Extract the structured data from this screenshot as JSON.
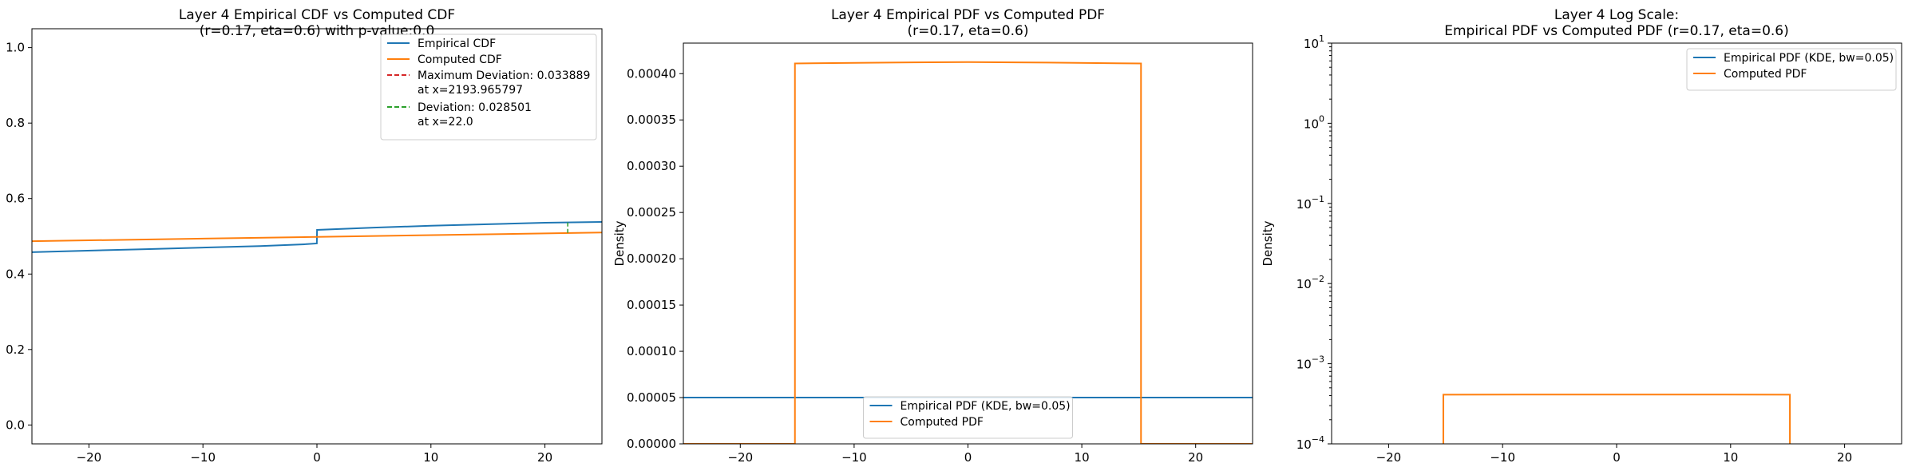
{
  "chart_data": [
    {
      "type": "line",
      "title_line1": "Layer 4 Empirical CDF vs Computed CDF",
      "title_line2": "(r=0.17, eta=0.6) with p-value:0.0",
      "xlabel": "",
      "ylabel": "",
      "xlim": [
        -25,
        25
      ],
      "ylim": [
        -0.05,
        1.05
      ],
      "xticks": [
        -20,
        -10,
        0,
        10,
        20
      ],
      "xtick_labels": [
        "−20",
        "−10",
        "0",
        "10",
        "20"
      ],
      "yticks": [
        0.0,
        0.2,
        0.4,
        0.6,
        0.8,
        1.0
      ],
      "ytick_labels": [
        "0.0",
        "0.2",
        "0.4",
        "0.6",
        "0.8",
        "1.0"
      ],
      "legend_position": "upper right",
      "legend": [
        {
          "label": "Empirical CDF",
          "color": "#1f77b4",
          "style": "solid"
        },
        {
          "label": "Computed CDF",
          "color": "#ff7f0e",
          "style": "solid"
        },
        {
          "label": "Maximum Deviation: 0.033889",
          "label2": "at x=2193.965797",
          "color": "#d62728",
          "style": "dashed"
        },
        {
          "label": "Deviation: 0.028501",
          "label2": "at x=22.0",
          "color": "#2ca02c",
          "style": "dashed"
        }
      ],
      "series": [
        {
          "name": "Empirical CDF",
          "color": "#1f77b4",
          "x": [
            -25,
            -15,
            -5,
            -1,
            -0.01,
            0.01,
            5,
            10,
            15,
            20,
            25
          ],
          "y": [
            0.458,
            0.466,
            0.474,
            0.479,
            0.481,
            0.517,
            0.523,
            0.528,
            0.532,
            0.536,
            0.538
          ]
        },
        {
          "name": "Computed CDF",
          "color": "#ff7f0e",
          "x": [
            -25,
            25
          ],
          "y": [
            0.487,
            0.51
          ]
        }
      ],
      "deviation_marker": {
        "x": 22.0,
        "y_from": 0.509,
        "y_to": 0.537,
        "color": "#2ca02c"
      }
    },
    {
      "type": "line",
      "title_line1": "Layer 4 Empirical PDF vs Computed PDF",
      "title_line2": "(r=0.17, eta=0.6)",
      "xlabel": "",
      "ylabel": "Density",
      "xlim": [
        -25,
        25
      ],
      "ylim": [
        0,
        0.000433
      ],
      "xticks": [
        -20,
        -10,
        0,
        10,
        20
      ],
      "xtick_labels": [
        "−20",
        "−10",
        "0",
        "10",
        "20"
      ],
      "yticks": [
        0,
        5e-05,
        0.0001,
        0.00015,
        0.0002,
        0.00025,
        0.0003,
        0.00035,
        0.0004
      ],
      "ytick_labels": [
        "0.00000",
        "0.00005",
        "0.00010",
        "0.00015",
        "0.00020",
        "0.00025",
        "0.00030",
        "0.00035",
        "0.00040"
      ],
      "legend_position": "lower center",
      "legend": [
        {
          "label": "Empirical PDF (KDE, bw=0.05)",
          "color": "#1f77b4",
          "style": "solid"
        },
        {
          "label": "Computed PDF",
          "color": "#ff7f0e",
          "style": "solid"
        }
      ],
      "series": [
        {
          "name": "Empirical PDF (KDE, bw=0.05)",
          "color": "#1f77b4",
          "x": [
            -25,
            25
          ],
          "y": [
            5e-05,
            5e-05
          ]
        },
        {
          "name": "Computed PDF",
          "color": "#ff7f0e",
          "x": [
            -25,
            -15.2,
            -15.2,
            -7,
            0,
            7,
            15.2,
            15.2,
            25
          ],
          "y": [
            0,
            0,
            0.000411,
            0.000412,
            0.0004125,
            0.000412,
            0.000411,
            0,
            0
          ]
        }
      ]
    },
    {
      "type": "line",
      "title_line1": "Layer 4 Log Scale:",
      "title_line2": "Empirical PDF vs Computed PDF (r=0.17, eta=0.6)",
      "xlabel": "",
      "ylabel": "Density",
      "y_scale": "log",
      "xlim": [
        -25,
        25
      ],
      "ylim": [
        0.0001,
        10
      ],
      "xticks": [
        -20,
        -10,
        0,
        10,
        20
      ],
      "xtick_labels": [
        "−20",
        "−10",
        "0",
        "10",
        "20"
      ],
      "yticks": [
        0.0001,
        0.001,
        0.01,
        0.1,
        1,
        10
      ],
      "ytick_exponents": [
        "−4",
        "−3",
        "−2",
        "−1",
        "0",
        "1"
      ],
      "ytick_base": "10",
      "legend_position": "upper right",
      "legend": [
        {
          "label": "Empirical PDF (KDE, bw=0.05)",
          "color": "#1f77b4",
          "style": "solid"
        },
        {
          "label": "Computed PDF",
          "color": "#ff7f0e",
          "style": "solid"
        }
      ],
      "series": [
        {
          "name": "Computed PDF",
          "color": "#ff7f0e",
          "x": [
            -15.2,
            -15.2,
            -7,
            0,
            7,
            15.2,
            15.2
          ],
          "y": [
            0.0001,
            0.000411,
            0.000412,
            0.0004125,
            0.000412,
            0.000411,
            0.0001
          ]
        }
      ]
    }
  ]
}
